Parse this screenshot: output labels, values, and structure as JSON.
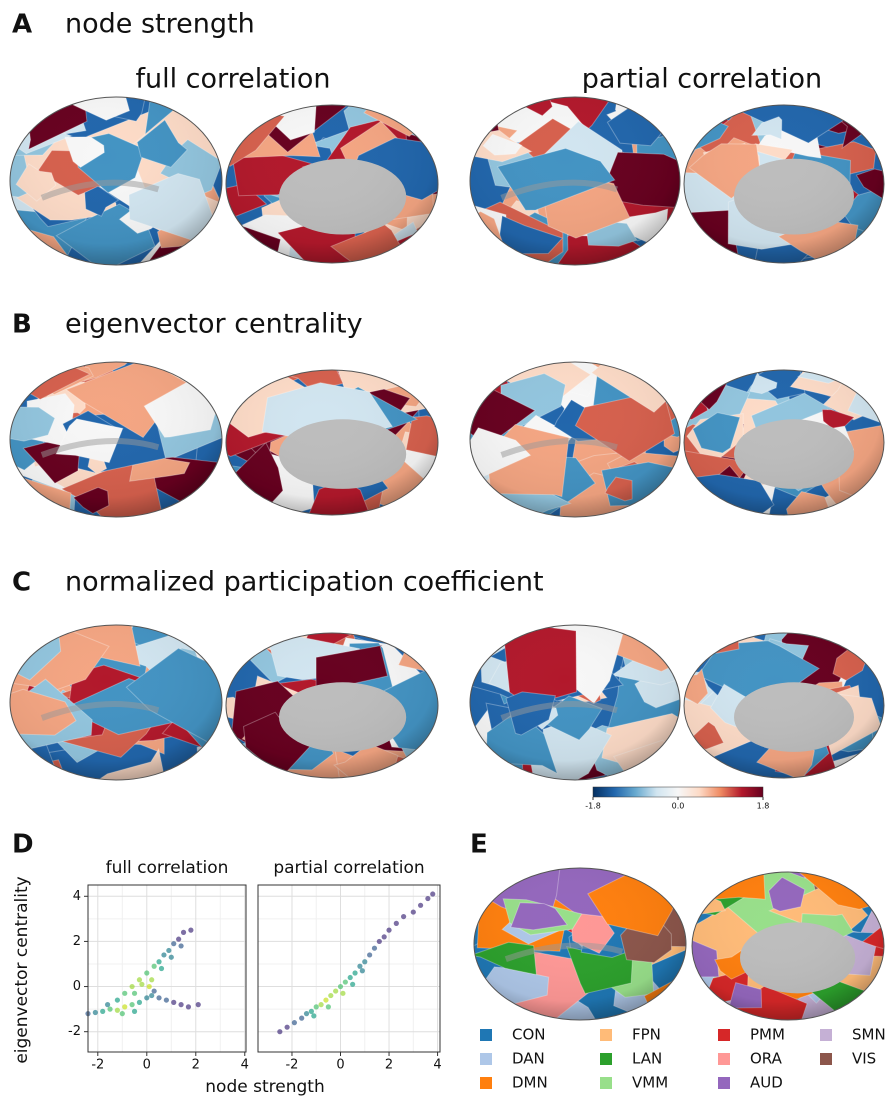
{
  "panels": {
    "A": {
      "label": "A",
      "title": "node strength"
    },
    "B": {
      "label": "B",
      "title": "eigenvector centrality"
    },
    "C": {
      "label": "C",
      "title": "normalized participation coefficient"
    },
    "D": {
      "label": "D",
      "x_label": "node strength",
      "y_label": "eigenvector centrality"
    },
    "E": {
      "label": "E"
    }
  },
  "column_titles": [
    "full correlation",
    "partial correlation"
  ],
  "networks": [
    {
      "name": "CON",
      "color": "#1f77b4"
    },
    {
      "name": "DAN",
      "color": "#aec7e8"
    },
    {
      "name": "DMN",
      "color": "#ff7f0e"
    },
    {
      "name": "FPN",
      "color": "#ffbb78"
    },
    {
      "name": "LAN",
      "color": "#2ca02c"
    },
    {
      "name": "VMM",
      "color": "#98df8a"
    },
    {
      "name": "PMM",
      "color": "#d62728"
    },
    {
      "name": "ORA",
      "color": "#ff9896"
    },
    {
      "name": "AUD",
      "color": "#9467bd"
    },
    {
      "name": "SMN",
      "color": "#c5b0d5"
    },
    {
      "name": "VIS",
      "color": "#8c564b"
    }
  ],
  "chart_data": [
    {
      "type": "colorbar",
      "colors": [
        "#053061",
        "#2166ac",
        "#67a9cf",
        "#d1e5f0",
        "#f7f7f7",
        "#fddbc7",
        "#ef8a62",
        "#b2182b",
        "#67001f"
      ],
      "xlim": [
        -1.8,
        1.8
      ],
      "xticks": [
        -1.8,
        {
          "value": 0,
          "label": "0.0"
        },
        1.8
      ]
    },
    {
      "type": "scatter",
      "title": "full correlation",
      "xlim": [
        -2.4,
        4.05
      ],
      "ylim": [
        -2.9,
        4.5
      ],
      "xticks": [
        -2,
        0,
        2,
        4
      ],
      "yticks": [
        -2,
        0,
        2,
        4
      ],
      "ytick_labels": true,
      "grid": true,
      "x": [
        -1.2,
        -0.9,
        -0.6,
        -0.3,
        0,
        0.3,
        0.5,
        0.7,
        0.9,
        1.1,
        1.3,
        1.5,
        1.8,
        0.2,
        -0.2,
        0.6,
        1.0,
        1.4,
        -0.5,
        0.1,
        -2.4,
        -2.1,
        -1.8,
        -1.5,
        -1.2,
        -0.9,
        -0.6,
        -0.3,
        -1.6,
        -1.0,
        -0.5,
        0,
        0.2,
        0.5,
        0.8,
        1.1,
        1.4,
        1.7,
        0.3,
        2.1
      ],
      "values": [
        -0.6,
        -0.3,
        0,
        0.3,
        0.6,
        0.9,
        1.1,
        1.4,
        1.6,
        1.9,
        2.1,
        2.4,
        2.5,
        0.3,
        0.1,
        0.8,
        1.3,
        1.8,
        -0.3,
        0,
        -1.2,
        -1.15,
        -1.1,
        -1,
        -1.05,
        -0.9,
        -0.8,
        -0.7,
        -0.8,
        -1.2,
        -1.1,
        -0.5,
        -0.4,
        -0.5,
        -0.6,
        -0.7,
        -0.8,
        -0.9,
        -0.2,
        -0.8
      ],
      "colors": [
        "#1fa187",
        "#4ac16d",
        "#9ed93a",
        "#9ed93a",
        "#4ac16d",
        "#4ac16d",
        "#1fa187",
        "#277f8e",
        "#277f8e",
        "#365c8d",
        "#46327e",
        "#46327e",
        "#46327e",
        "#9ed93a",
        "#9ed93a",
        "#1fa187",
        "#277f8e",
        "#365c8d",
        "#4ac16d",
        "#c8e020",
        "#365c8d",
        "#277f8e",
        "#1fa187",
        "#4ac16d",
        "#9ed93a",
        "#c8e020",
        "#4ac16d",
        "#1fa187",
        "#277f8e",
        "#4ac16d",
        "#1fa187",
        "#277f8e",
        "#277f8e",
        "#365c8d",
        "#365c8d",
        "#46327e",
        "#46327e",
        "#46327e",
        "#365c8d",
        "#46327e"
      ]
    },
    {
      "type": "scatter",
      "title": "partial correlation",
      "xlim": [
        -3.4,
        4.1
      ],
      "ylim": [
        -2.9,
        4.5
      ],
      "xticks": [
        -2,
        0,
        2,
        4
      ],
      "yticks": [
        -2,
        0,
        2,
        4
      ],
      "ytick_labels": false,
      "grid": true,
      "x": [
        -2.5,
        -2.2,
        -1.9,
        -1.6,
        -1.4,
        -1.2,
        -1.0,
        -0.8,
        -0.6,
        -0.4,
        -0.2,
        0,
        0.2,
        0.4,
        0.6,
        0.8,
        1.0,
        1.2,
        1.4,
        1.6,
        1.8,
        2.0,
        2.3,
        2.6,
        3.0,
        3.3,
        3.6,
        3.8,
        -1.1,
        -0.5,
        0.1,
        0.5,
        0.9
      ],
      "values": [
        -2,
        -1.8,
        -1.6,
        -1.4,
        -1.2,
        -1.1,
        -0.9,
        -0.8,
        -0.6,
        -0.4,
        -0.2,
        0,
        0.2,
        0.4,
        0.6,
        0.9,
        1.1,
        1.4,
        1.7,
        2.0,
        2.2,
        2.5,
        2.8,
        3.1,
        3.3,
        3.6,
        3.9,
        4.1,
        -1.3,
        -0.9,
        -0.3,
        0.1,
        0.7
      ],
      "colors": [
        "#46327e",
        "#46327e",
        "#365c8d",
        "#365c8d",
        "#277f8e",
        "#1fa187",
        "#4ac16d",
        "#9ed93a",
        "#c8e020",
        "#9ed93a",
        "#9ed93a",
        "#4ac16d",
        "#4ac16d",
        "#1fa187",
        "#1fa187",
        "#277f8e",
        "#277f8e",
        "#365c8d",
        "#365c8d",
        "#46327e",
        "#46327e",
        "#46327e",
        "#46327e",
        "#46327e",
        "#46327e",
        "#46327e",
        "#46327e",
        "#46327e",
        "#1fa187",
        "#4ac16d",
        "#9ed93a",
        "#1fa187",
        "#277f8e"
      ]
    }
  ]
}
